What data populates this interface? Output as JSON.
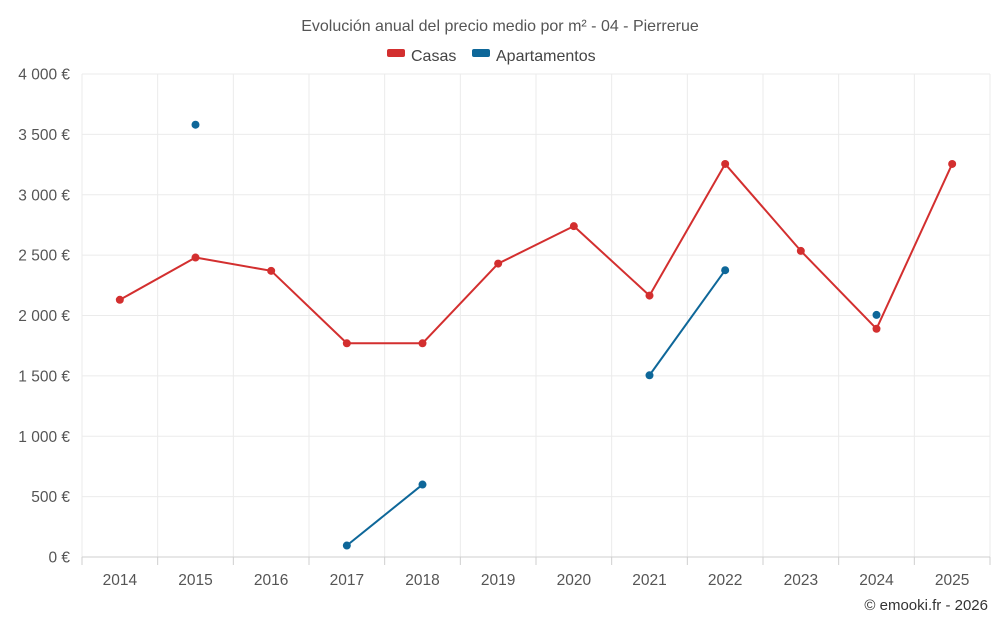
{
  "chart_data": {
    "type": "line",
    "title": "Evolución anual del precio medio por m² - 04 - Pierrerue",
    "xlabel": "",
    "ylabel": "",
    "categories": [
      "2014",
      "2015",
      "2016",
      "2017",
      "2018",
      "2019",
      "2020",
      "2021",
      "2022",
      "2023",
      "2024",
      "2025"
    ],
    "ylim": [
      0,
      4000
    ],
    "y_ticks": [
      0,
      500,
      1000,
      1500,
      2000,
      2500,
      3000,
      3500,
      4000
    ],
    "y_tick_labels": [
      "0 €",
      "500 €",
      "1 000 €",
      "1 500 €",
      "2 000 €",
      "2 500 €",
      "3 000 €",
      "3 500 €",
      "4 000 €"
    ],
    "grid": true,
    "legend_position": "top-center",
    "series": [
      {
        "name": "Casas",
        "color": "#d32f2f",
        "values": [
          2130,
          2480,
          2370,
          1770,
          1770,
          2430,
          2740,
          2165,
          3255,
          2535,
          1890,
          3255
        ]
      },
      {
        "name": "Apartamentos",
        "color": "#0e6799",
        "values": [
          null,
          3580,
          null,
          95,
          600,
          null,
          null,
          1505,
          2375,
          null,
          2005,
          null
        ]
      }
    ],
    "credit": "© emooki.fr - 2026"
  }
}
